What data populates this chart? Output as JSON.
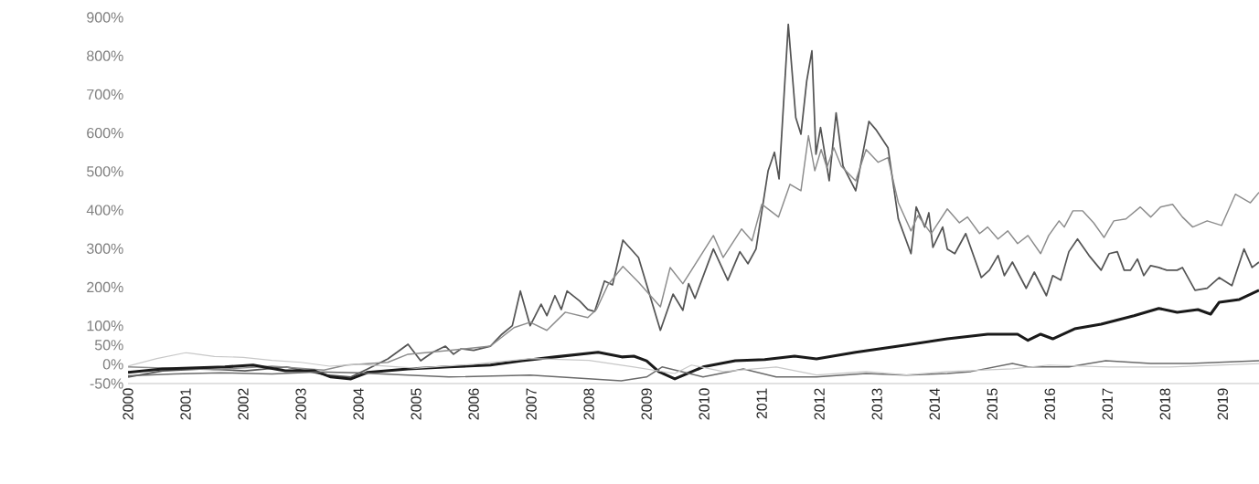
{
  "chart_data": {
    "type": "line",
    "xlim": [
      2000,
      2019.63
    ],
    "ylim": [
      -50,
      900
    ],
    "xticks": [
      2000,
      2001,
      2002,
      2003,
      2004,
      2005,
      2006,
      2007,
      2008,
      2009,
      2010,
      2011,
      2012,
      2013,
      2014,
      2015,
      2016,
      2017,
      2018,
      2019
    ],
    "yticks": [
      {
        "value": -50,
        "label": "-50%"
      },
      {
        "value": 0,
        "label": "0%"
      },
      {
        "value": 50,
        "label": "50%"
      },
      {
        "value": 100,
        "label": "100%"
      },
      {
        "value": 200,
        "label": "200%"
      },
      {
        "value": 300,
        "label": "300%"
      },
      {
        "value": 400,
        "label": "400%"
      },
      {
        "value": 500,
        "label": "500%"
      },
      {
        "value": 600,
        "label": "600%"
      },
      {
        "value": 700,
        "label": "700%"
      },
      {
        "value": 800,
        "label": "800%"
      },
      {
        "value": 900,
        "label": "900%"
      }
    ],
    "grid": false,
    "legend": false,
    "marker": "none",
    "line_style": "solid",
    "series": [
      {
        "color": "#555555",
        "x": [
          2000.0,
          2000.6,
          2001.32,
          2002.03,
          2002.75,
          2003.44,
          2003.87,
          2004.16,
          2004.51,
          2004.86,
          2005.08,
          2005.29,
          2005.51,
          2005.65,
          2005.78,
          2006.0,
          2006.29,
          2006.49,
          2006.67,
          2006.81,
          2006.98,
          2007.17,
          2007.27,
          2007.41,
          2007.52,
          2007.62,
          2007.84,
          2007.98,
          2008.1,
          2008.27,
          2008.41,
          2008.59,
          2008.86,
          2009.24,
          2009.46,
          2009.63,
          2009.73,
          2009.84,
          2010.16,
          2010.41,
          2010.62,
          2010.76,
          2010.9,
          2011.11,
          2011.22,
          2011.3,
          2011.46,
          2011.59,
          2011.68,
          2011.78,
          2011.87,
          2011.94,
          2012.02,
          2012.17,
          2012.29,
          2012.41,
          2012.63,
          2012.86,
          2012.98,
          2013.19,
          2013.37,
          2013.59,
          2013.68,
          2013.83,
          2013.9,
          2013.97,
          2014.14,
          2014.22,
          2014.35,
          2014.54,
          2014.81,
          2014.95,
          2015.1,
          2015.21,
          2015.35,
          2015.59,
          2015.73,
          2015.94,
          2016.05,
          2016.19,
          2016.33,
          2016.48,
          2016.68,
          2016.89,
          2017.03,
          2017.17,
          2017.29,
          2017.4,
          2017.52,
          2017.63,
          2017.75,
          2017.89,
          2018.03,
          2018.21,
          2018.3,
          2018.52,
          2018.73,
          2018.94,
          2019.16,
          2019.37,
          2019.51,
          2019.63
        ],
        "values": [
          -33,
          -17,
          -12,
          -17,
          -7,
          -28,
          -33,
          -12,
          14,
          52,
          9,
          31,
          47,
          26,
          40,
          36,
          47,
          78,
          100,
          190,
          100,
          156,
          126,
          178,
          142,
          190,
          164,
          142,
          137,
          216,
          206,
          322,
          277,
          88,
          182,
          140,
          209,
          171,
          299,
          218,
          292,
          261,
          299,
          502,
          550,
          481,
          882,
          640,
          597,
          735,
          813,
          545,
          614,
          476,
          652,
          514,
          450,
          630,
          609,
          562,
          377,
          287,
          408,
          356,
          393,
          303,
          356,
          299,
          287,
          339,
          225,
          244,
          282,
          230,
          265,
          197,
          239,
          178,
          230,
          218,
          292,
          325,
          282,
          244,
          287,
          292,
          244,
          244,
          273,
          230,
          256,
          251,
          244,
          244,
          251,
          192,
          197,
          225,
          204,
          299,
          251,
          265
        ]
      },
      {
        "color": "#8c8c8c",
        "x": [
          2000.0,
          2000.6,
          2001.5,
          2002.5,
          2003.4,
          2003.79,
          2004.51,
          2004.86,
          2005.57,
          2006.29,
          2006.7,
          2006.98,
          2007.27,
          2007.59,
          2007.98,
          2008.13,
          2008.33,
          2008.59,
          2008.86,
          2009.24,
          2009.41,
          2009.63,
          2009.78,
          2010.16,
          2010.33,
          2010.65,
          2010.83,
          2011.0,
          2011.29,
          2011.49,
          2011.68,
          2011.81,
          2011.92,
          2012.03,
          2012.13,
          2012.25,
          2012.38,
          2012.63,
          2012.81,
          2013.02,
          2013.19,
          2013.37,
          2013.59,
          2013.71,
          2013.94,
          2014.22,
          2014.43,
          2014.57,
          2014.78,
          2014.92,
          2015.1,
          2015.27,
          2015.44,
          2015.62,
          2015.84,
          2015.98,
          2016.16,
          2016.25,
          2016.4,
          2016.57,
          2016.76,
          2016.94,
          2017.11,
          2017.32,
          2017.57,
          2017.75,
          2017.92,
          2018.13,
          2018.3,
          2018.48,
          2018.73,
          2018.98,
          2019.22,
          2019.48,
          2019.63
        ],
        "values": [
          -7,
          -10,
          -14,
          -5,
          -15,
          -2,
          5,
          26,
          36,
          47,
          95,
          109,
          88,
          135,
          121,
          142,
          206,
          254,
          213,
          149,
          251,
          209,
          244,
          334,
          277,
          351,
          320,
          415,
          382,
          467,
          450,
          593,
          502,
          557,
          510,
          562,
          514,
          476,
          557,
          524,
          536,
          419,
          346,
          386,
          339,
          403,
          367,
          382,
          339,
          356,
          325,
          346,
          313,
          334,
          287,
          334,
          372,
          356,
          398,
          398,
          367,
          329,
          372,
          377,
          408,
          382,
          408,
          415,
          382,
          356,
          372,
          360,
          441,
          419,
          446
        ]
      },
      {
        "color": "#1a1a1a",
        "x": [
          2000.0,
          2000.6,
          2001.68,
          2002.17,
          2002.73,
          2003.24,
          2003.52,
          2003.87,
          2004.16,
          2004.86,
          2005.57,
          2006.29,
          2006.84,
          2007.41,
          2008.16,
          2008.57,
          2008.78,
          2009.0,
          2009.21,
          2009.49,
          2009.98,
          2010.54,
          2011.05,
          2011.57,
          2011.95,
          2012.63,
          2013.51,
          2014.22,
          2014.92,
          2015.44,
          2015.62,
          2015.84,
          2016.05,
          2016.43,
          2016.89,
          2017.46,
          2017.89,
          2018.21,
          2018.57,
          2018.79,
          2018.94,
          2019.29,
          2019.63
        ],
        "values": [
          -21,
          -12,
          -7,
          -2,
          -17,
          -17,
          -33,
          -38,
          -21,
          -12,
          -7,
          -2,
          9,
          19,
          31,
          19,
          21,
          9,
          -19,
          -38,
          -7,
          9,
          12,
          21,
          14,
          31,
          50,
          66,
          78,
          78,
          62,
          78,
          66,
          92,
          104,
          126,
          145,
          135,
          142,
          130,
          161,
          168,
          192
        ]
      },
      {
        "color": "#6a6a6a",
        "x": [
          2000.0,
          2000.8,
          2001.6,
          2002.5,
          2003.3,
          2004.0,
          2004.86,
          2005.57,
          2006.98,
          2008.56,
          2009.0,
          2009.27,
          2009.98,
          2010.68,
          2011.25,
          2011.95,
          2012.81,
          2013.51,
          2014.22,
          2014.63,
          2015.35,
          2015.62,
          2016.33,
          2016.97,
          2017.75,
          2018.44,
          2019.63
        ],
        "values": [
          -30,
          -25,
          -22,
          -25,
          -20,
          -22,
          -28,
          -33,
          -28,
          -43,
          -33,
          -7,
          -33,
          -12,
          -33,
          -33,
          -24,
          -28,
          -24,
          -19,
          2,
          -7,
          -7,
          9,
          2,
          2,
          9
        ]
      },
      {
        "color": "#c8c8c8",
        "x": [
          2000.0,
          2000.5,
          2001.0,
          2001.5,
          2002.0,
          2002.5,
          2003.0,
          2003.5,
          2004.0,
          2005.0,
          2006.0,
          2007.0,
          2008.0,
          2008.78,
          2009.49,
          2009.78,
          2010.33,
          2011.25,
          2011.95,
          2012.81,
          2013.51,
          2014.22,
          2015.35,
          2015.98,
          2017.03,
          2018.1,
          2019.63
        ],
        "values": [
          -5,
          15,
          30,
          20,
          18,
          10,
          5,
          -5,
          0,
          -10,
          0,
          15,
          10,
          -7,
          -24,
          -2,
          -19,
          -7,
          -28,
          -19,
          -28,
          -19,
          -12,
          -2,
          -7,
          -7,
          2
        ]
      }
    ]
  }
}
